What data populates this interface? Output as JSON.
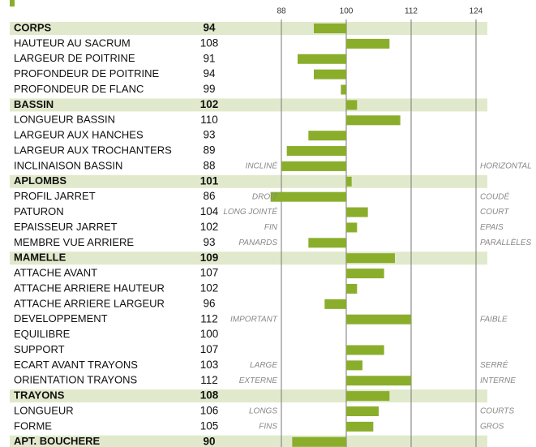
{
  "chart_data": {
    "type": "bar",
    "categories": [
      "CORPS",
      "HAUTEUR AU SACRUM",
      "LARGEUR DE POITRINE",
      "PROFONDEUR DE POITRINE",
      "PROFONDEUR DE FLANC",
      "BASSIN",
      "LONGUEUR BASSIN",
      "LARGEUR AUX HANCHES",
      "LARGEUR AUX TROCHANTERS",
      "INCLINAISON BASSIN",
      "APLOMBS",
      "PROFIL JARRET",
      "PATURON",
      "EPAISSEUR JARRET",
      "MEMBRE VUE ARRIERE",
      "MAMELLE",
      "ATTACHE AVANT",
      "ATTACHE ARRIERE HAUTEUR",
      "ATTACHE ARRIERE LARGEUR",
      "DEVELOPPEMENT",
      "EQUILIBRE",
      "SUPPORT",
      "ECART AVANT TRAYONS",
      "ORIENTATION TRAYONS",
      "TRAYONS",
      "LONGUEUR",
      "FORME",
      "APT. BOUCHERE"
    ],
    "values": [
      94,
      108,
      91,
      94,
      99,
      102,
      110,
      93,
      89,
      88,
      101,
      86,
      104,
      102,
      93,
      109,
      107,
      102,
      96,
      112,
      100,
      107,
      103,
      112,
      108,
      106,
      105,
      90
    ],
    "section_headers": [
      true,
      false,
      false,
      false,
      false,
      true,
      false,
      false,
      false,
      false,
      true,
      false,
      false,
      false,
      false,
      true,
      false,
      false,
      false,
      false,
      false,
      false,
      false,
      false,
      true,
      false,
      false,
      true
    ],
    "annotations_left": [
      null,
      null,
      null,
      null,
      null,
      null,
      null,
      null,
      null,
      "INCLINÉ",
      null,
      "DROIT",
      "LONG JOINTÉ",
      "FIN",
      "PANARDS",
      null,
      null,
      null,
      null,
      "IMPORTANT",
      null,
      null,
      "LARGE",
      "EXTERNE",
      null,
      "LONGS",
      "FINS",
      null
    ],
    "annotations_right": [
      null,
      null,
      null,
      null,
      null,
      null,
      null,
      null,
      null,
      "HORIZONTAL",
      null,
      "COUDÉ",
      "COURT",
      "EPAIS",
      "PARALLÈLES",
      null,
      null,
      null,
      null,
      "FAIBLE",
      null,
      null,
      "SERRÉ",
      "INTERNE",
      null,
      "COURTS",
      "GROS",
      null
    ],
    "xlim": [
      88,
      124
    ],
    "xticks": [
      88,
      100,
      112,
      124
    ],
    "baseline": 100,
    "color": "#8aae2c",
    "header_band_color": "#e1e9cc",
    "grid": true
  }
}
